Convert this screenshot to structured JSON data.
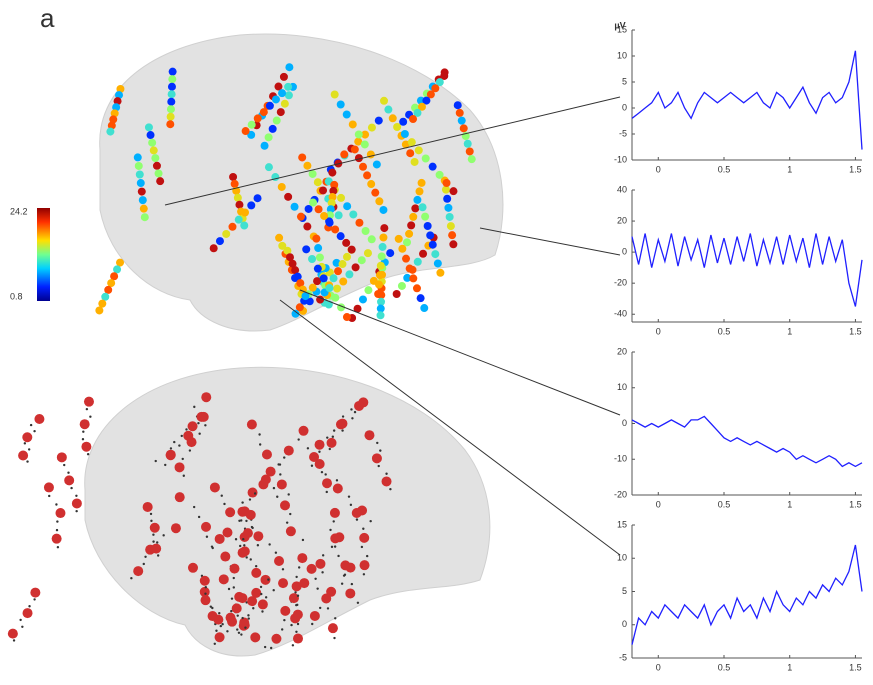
{
  "panel_label": "a",
  "colorbar": {
    "max": 24.2,
    "min": 0.8
  },
  "chart_data": [
    {
      "type": "line",
      "y_label": "µV",
      "color": "#2020ff",
      "x": [
        -0.2,
        -0.15,
        -0.1,
        -0.05,
        0,
        0.05,
        0.1,
        0.15,
        0.2,
        0.25,
        0.3,
        0.35,
        0.4,
        0.45,
        0.5,
        0.55,
        0.6,
        0.65,
        0.7,
        0.75,
        0.8,
        0.85,
        0.9,
        0.95,
        1,
        1.05,
        1.1,
        1.15,
        1.2,
        1.25,
        1.3,
        1.35,
        1.4,
        1.45,
        1.5,
        1.55
      ],
      "values": [
        -2,
        -1,
        0,
        1,
        3,
        0,
        1,
        3,
        0,
        -2,
        1,
        3,
        2,
        1,
        2,
        3,
        2,
        1,
        2,
        3,
        1,
        0,
        3,
        2,
        0,
        2,
        4,
        1,
        -1,
        2,
        3,
        1,
        2,
        5,
        11,
        -8
      ],
      "xlim": [
        -0.2,
        1.55
      ],
      "xticks": [
        0,
        0.5,
        1,
        1.5
      ],
      "ylim": [
        -10,
        15
      ],
      "yticks": [
        -10,
        -5,
        0,
        5,
        10,
        15
      ]
    },
    {
      "type": "line",
      "color": "#2020ff",
      "x": [
        -0.2,
        -0.15,
        -0.1,
        -0.05,
        0,
        0.05,
        0.1,
        0.15,
        0.2,
        0.25,
        0.3,
        0.35,
        0.4,
        0.45,
        0.5,
        0.55,
        0.6,
        0.65,
        0.7,
        0.75,
        0.8,
        0.85,
        0.9,
        0.95,
        1,
        1.05,
        1.1,
        1.15,
        1.2,
        1.25,
        1.3,
        1.35,
        1.4,
        1.45,
        1.5,
        1.55
      ],
      "values": [
        10,
        -8,
        12,
        -10,
        8,
        -6,
        12,
        -9,
        10,
        -5,
        8,
        -10,
        11,
        -7,
        9,
        -8,
        10,
        -6,
        12,
        -9,
        8,
        -7,
        10,
        -8,
        11,
        -6,
        9,
        -10,
        12,
        -8,
        10,
        -6,
        8,
        -20,
        -35,
        -5
      ],
      "xlim": [
        -0.2,
        1.55
      ],
      "xticks": [
        0,
        0.5,
        1,
        1.5
      ],
      "ylim": [
        -45,
        40
      ],
      "yticks": [
        -40,
        -20,
        0,
        20,
        40
      ]
    },
    {
      "type": "line",
      "color": "#2020ff",
      "x": [
        -0.2,
        -0.15,
        -0.1,
        -0.05,
        0,
        0.05,
        0.1,
        0.15,
        0.2,
        0.25,
        0.3,
        0.35,
        0.4,
        0.45,
        0.5,
        0.55,
        0.6,
        0.65,
        0.7,
        0.75,
        0.8,
        0.85,
        0.9,
        0.95,
        1,
        1.05,
        1.1,
        1.15,
        1.2,
        1.25,
        1.3,
        1.35,
        1.4,
        1.45,
        1.5,
        1.55
      ],
      "values": [
        1,
        0,
        -1,
        0,
        -1,
        0,
        1,
        0,
        -1,
        1,
        1,
        2,
        0,
        -2,
        -4,
        -5,
        -4,
        -5,
        -6,
        -5,
        -6,
        -7,
        -8,
        -7,
        -8,
        -10,
        -9,
        -10,
        -11,
        -10,
        -9,
        -10,
        -12,
        -11,
        -12,
        -11
      ],
      "xlim": [
        -0.2,
        1.55
      ],
      "xticks": [
        0,
        0.5,
        1,
        1.5
      ],
      "ylim": [
        -20,
        20
      ],
      "yticks": [
        -20,
        -10,
        0,
        10,
        20
      ]
    },
    {
      "type": "line",
      "color": "#2020ff",
      "x": [
        -0.2,
        -0.15,
        -0.1,
        -0.05,
        0,
        0.05,
        0.1,
        0.15,
        0.2,
        0.25,
        0.3,
        0.35,
        0.4,
        0.45,
        0.5,
        0.55,
        0.6,
        0.65,
        0.7,
        0.75,
        0.8,
        0.85,
        0.9,
        0.95,
        1,
        1.05,
        1.1,
        1.15,
        1.2,
        1.25,
        1.3,
        1.35,
        1.4,
        1.45,
        1.5,
        1.55
      ],
      "values": [
        -3,
        1,
        0,
        2,
        1,
        3,
        2,
        1,
        3,
        2,
        1,
        3,
        0,
        2,
        3,
        1,
        4,
        2,
        3,
        1,
        4,
        2,
        5,
        3,
        2,
        4,
        3,
        5,
        4,
        6,
        5,
        7,
        6,
        8,
        12,
        5
      ],
      "xlim": [
        -0.2,
        1.55
      ],
      "xticks": [
        0,
        0.5,
        1,
        1.5
      ],
      "ylim": [
        -5,
        15
      ],
      "yticks": [
        -5,
        0,
        5,
        10,
        15
      ]
    }
  ]
}
